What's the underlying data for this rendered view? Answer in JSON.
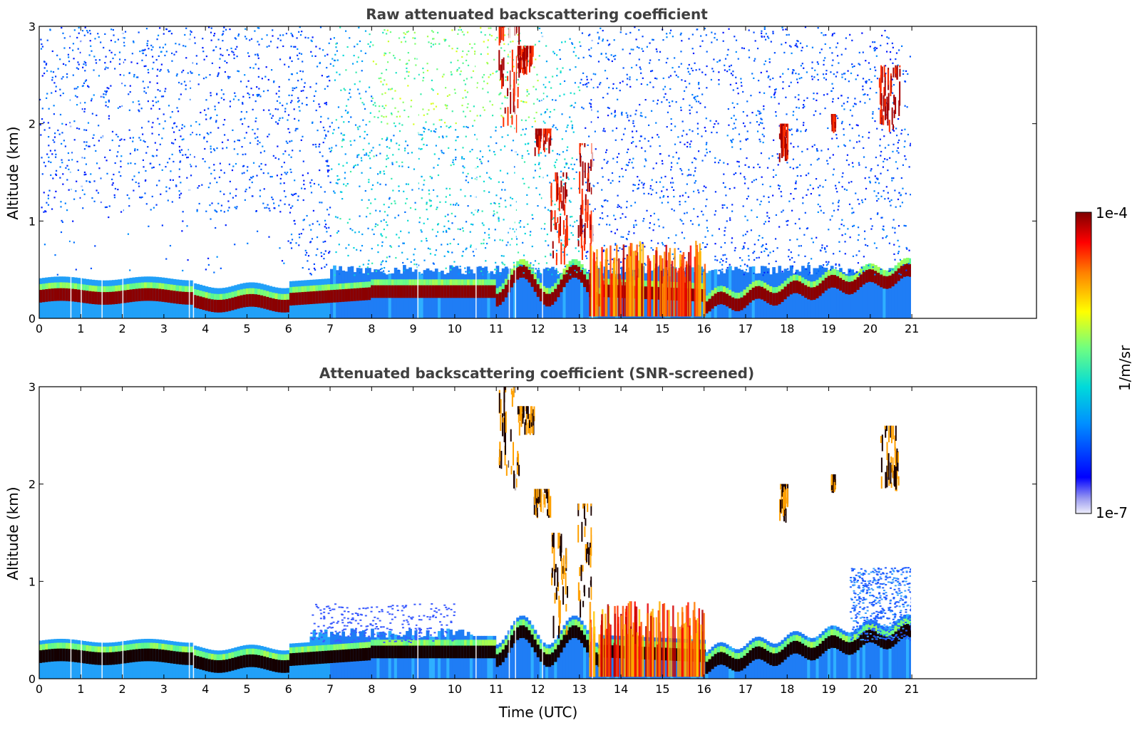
{
  "chart_data": [
    {
      "type": "heatmap",
      "title": "Raw attenuated backscattering coefficient",
      "xlabel": "",
      "ylabel": "Altitude (km)",
      "xlim": [
        0,
        24
      ],
      "ylim": [
        0,
        3
      ],
      "x_ticks": [
        "0",
        "1",
        "2",
        "3",
        "4",
        "5",
        "6",
        "7",
        "8",
        "9",
        "10",
        "11",
        "12",
        "13",
        "14",
        "15",
        "16",
        "17",
        "18",
        "19",
        "20",
        "21"
      ],
      "y_ticks": [
        "0",
        "1",
        "2",
        "3"
      ],
      "data_extent_hours": [
        0,
        21
      ],
      "colorscale": "jet, log scale",
      "features": [
        {
          "name": "boundary layer top",
          "time_hours": [
            0,
            16
          ],
          "altitude_km": [
            0.1,
            0.4
          ]
        },
        {
          "name": "cloud",
          "time_hours": [
            11,
            12.2
          ],
          "altitude_km": [
            1.6,
            3.0
          ]
        },
        {
          "name": "cloud",
          "time_hours": [
            20.2,
            20.7
          ],
          "altitude_km": [
            2.0,
            2.6
          ]
        }
      ]
    },
    {
      "type": "heatmap",
      "title": "Attenuated backscattering coefficient (SNR-screened)",
      "xlabel": "Time (UTC)",
      "ylabel": "Altitude (km)",
      "xlim": [
        0,
        24
      ],
      "ylim": [
        0,
        3
      ],
      "x_ticks": [
        "0",
        "1",
        "2",
        "3",
        "4",
        "5",
        "6",
        "7",
        "8",
        "9",
        "10",
        "11",
        "12",
        "13",
        "14",
        "15",
        "16",
        "17",
        "18",
        "19",
        "20",
        "21"
      ],
      "y_ticks": [
        "0",
        "1",
        "2",
        "3"
      ],
      "data_extent_hours": [
        0,
        21
      ],
      "colorscale": "jet, log scale"
    }
  ],
  "colorbar": {
    "max_label": "1e-4",
    "min_label": "1e-7",
    "unit_label": "1/m/sr",
    "colors": [
      "#e6e6fa",
      "#0000ff",
      "#00a0ff",
      "#00e0e0",
      "#80ff80",
      "#ffff00",
      "#ff8000",
      "#ff0000",
      "#800000"
    ]
  }
}
